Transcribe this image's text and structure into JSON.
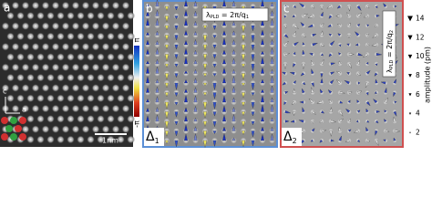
{
  "panels": [
    {
      "label": "a",
      "scalebar": "1nm",
      "axes": [
        "c",
        "a"
      ]
    },
    {
      "label": "b",
      "wavelength": {
        "symbol": "λ",
        "sub": "PLD",
        "rest": " = 2π/q",
        "index": "1"
      },
      "domain": {
        "symbol": "Δ",
        "index": "1"
      }
    },
    {
      "label": "c",
      "wavelength": {
        "symbol": "λ",
        "sub": "PLD",
        "rest": " = 2π/q",
        "index": "2"
      },
      "domain": {
        "symbol": "Δ",
        "index": "2"
      }
    }
  ],
  "colorbar": {
    "top": "π",
    "bottom": "-π"
  },
  "amplitude_scale": {
    "label": "amplitude (pm)",
    "lim": [
      1,
      15
    ],
    "ticks": [
      14,
      12,
      10,
      8,
      6,
      4,
      2
    ]
  }
}
